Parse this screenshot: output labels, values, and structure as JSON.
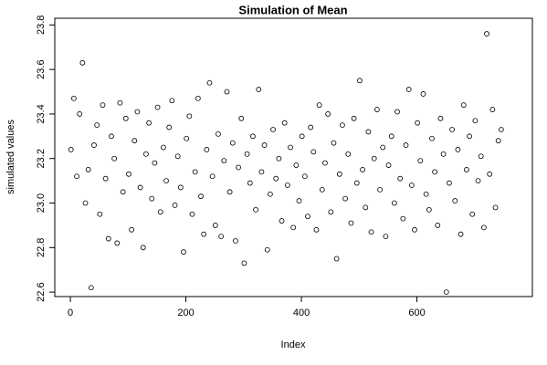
{
  "chart_data": {
    "type": "scatter",
    "title": "Simulation of Mean",
    "x_label": "Index",
    "y_label": "simulated values",
    "x": [
      1,
      6,
      11,
      16,
      21,
      26,
      31,
      36,
      41,
      46,
      51,
      56,
      61,
      66,
      71,
      76,
      81,
      86,
      91,
      96,
      101,
      106,
      111,
      116,
      121,
      126,
      131,
      136,
      141,
      146,
      151,
      156,
      161,
      166,
      171,
      176,
      181,
      186,
      191,
      196,
      201,
      206,
      211,
      216,
      221,
      226,
      231,
      236,
      241,
      246,
      251,
      256,
      261,
      266,
      271,
      276,
      281,
      286,
      291,
      296,
      301,
      306,
      311,
      316,
      321,
      326,
      331,
      336,
      341,
      346,
      351,
      356,
      361,
      366,
      371,
      376,
      381,
      386,
      391,
      396,
      401,
      406,
      411,
      416,
      421,
      426,
      431,
      436,
      441,
      446,
      451,
      456,
      461,
      466,
      471,
      476,
      481,
      486,
      491,
      496,
      501,
      506,
      511,
      516,
      521,
      526,
      531,
      536,
      541,
      546,
      551,
      556,
      561,
      566,
      571,
      576,
      581,
      586,
      591,
      596,
      601,
      606,
      611,
      616,
      621,
      626,
      631,
      636,
      641,
      646,
      651,
      656,
      661,
      666,
      671,
      676,
      681,
      686,
      691,
      696,
      701,
      706,
      711,
      716,
      721,
      726,
      731,
      736,
      741,
      746
    ],
    "values": [
      23.24,
      23.47,
      23.12,
      23.4,
      23.63,
      23.0,
      23.15,
      22.62,
      23.26,
      23.35,
      22.95,
      23.44,
      23.11,
      22.84,
      23.3,
      23.2,
      22.82,
      23.45,
      23.05,
      23.38,
      23.13,
      22.88,
      23.28,
      23.41,
      23.07,
      22.8,
      23.22,
      23.36,
      23.02,
      23.18,
      23.43,
      22.96,
      23.25,
      23.1,
      23.34,
      23.46,
      22.99,
      23.21,
      23.07,
      22.78,
      23.29,
      23.39,
      22.95,
      23.14,
      23.47,
      23.03,
      22.86,
      23.24,
      23.54,
      23.12,
      22.9,
      23.31,
      22.85,
      23.19,
      23.5,
      23.05,
      23.27,
      22.83,
      23.16,
      23.38,
      22.73,
      23.22,
      23.09,
      23.3,
      22.97,
      23.51,
      23.14,
      23.26,
      22.79,
      23.04,
      23.33,
      23.11,
      23.2,
      22.92,
      23.36,
      23.08,
      23.25,
      22.89,
      23.17,
      23.01,
      23.3,
      23.12,
      22.94,
      23.34,
      23.23,
      22.88,
      23.44,
      23.06,
      23.18,
      23.4,
      22.96,
      23.27,
      22.75,
      23.13,
      23.35,
      23.02,
      23.22,
      22.91,
      23.38,
      23.09,
      23.55,
      23.15,
      22.98,
      23.32,
      22.87,
      23.2,
      23.42,
      23.06,
      23.25,
      22.85,
      23.17,
      23.3,
      23.0,
      23.41,
      23.11,
      22.93,
      23.26,
      23.51,
      23.08,
      22.88,
      23.36,
      23.19,
      23.49,
      23.04,
      22.97,
      23.29,
      23.14,
      22.9,
      23.38,
      23.22,
      22.6,
      23.09,
      23.33,
      23.01,
      23.24,
      22.86,
      23.44,
      23.15,
      23.3,
      22.95,
      23.37,
      23.1,
      23.21,
      22.89,
      23.76,
      23.13,
      23.42,
      22.98,
      23.28,
      23.33
    ],
    "color": "#000000",
    "xlim": [
      -27,
      800
    ],
    "ylim": [
      22.58,
      23.83
    ],
    "xticks": [
      0,
      200,
      400,
      600
    ],
    "yticks": [
      22.6,
      22.8,
      {
        "value": 23,
        "label": "23.0"
      },
      23.2,
      23.4,
      23.6,
      23.8
    ]
  }
}
